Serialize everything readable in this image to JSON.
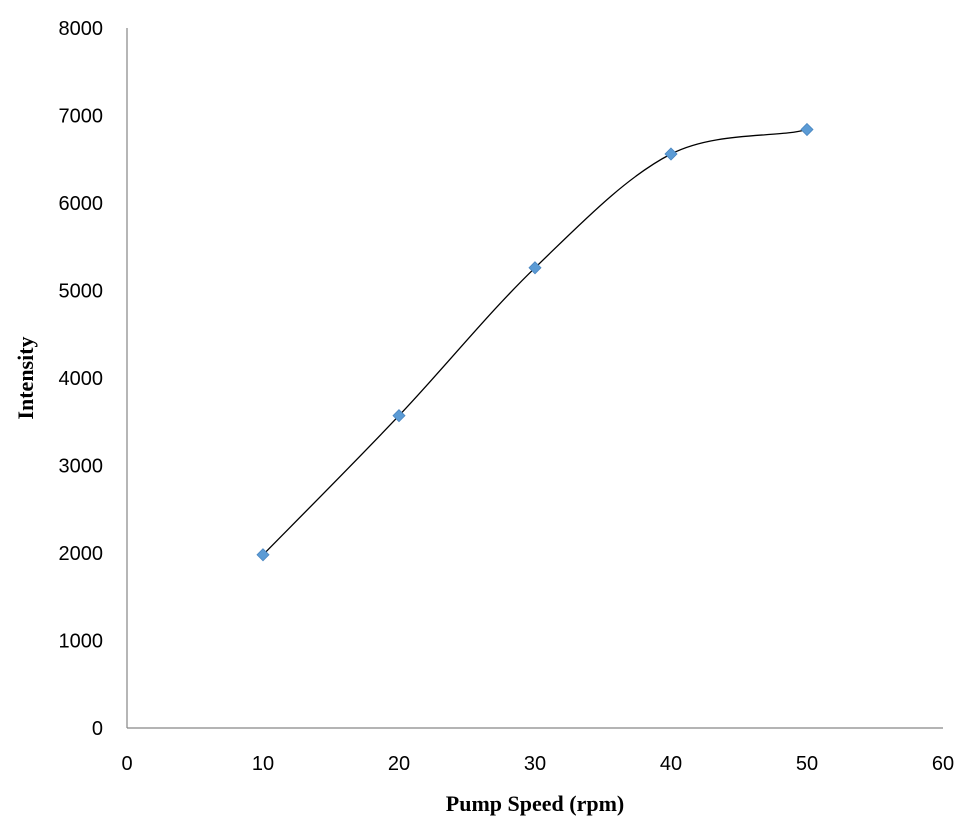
{
  "chart_data": {
    "type": "scatter",
    "title": "",
    "xlabel": "Pump Speed (rpm)",
    "ylabel": "Intensity",
    "xlim": [
      0,
      60
    ],
    "ylim": [
      0,
      8000
    ],
    "x_ticks": [
      0,
      10,
      20,
      30,
      40,
      50,
      60
    ],
    "y_ticks": [
      0,
      1000,
      2000,
      3000,
      4000,
      5000,
      6000,
      7000,
      8000
    ],
    "grid": false,
    "legend": "none",
    "series": [
      {
        "x": [
          10,
          20,
          30,
          40,
          50
        ],
        "y": [
          1980,
          3570,
          5260,
          6560,
          6840
        ],
        "marker": "diamond",
        "color": "#5b9bd5",
        "trendline": "smooth curve",
        "trendline_color": "#000000"
      }
    ]
  }
}
